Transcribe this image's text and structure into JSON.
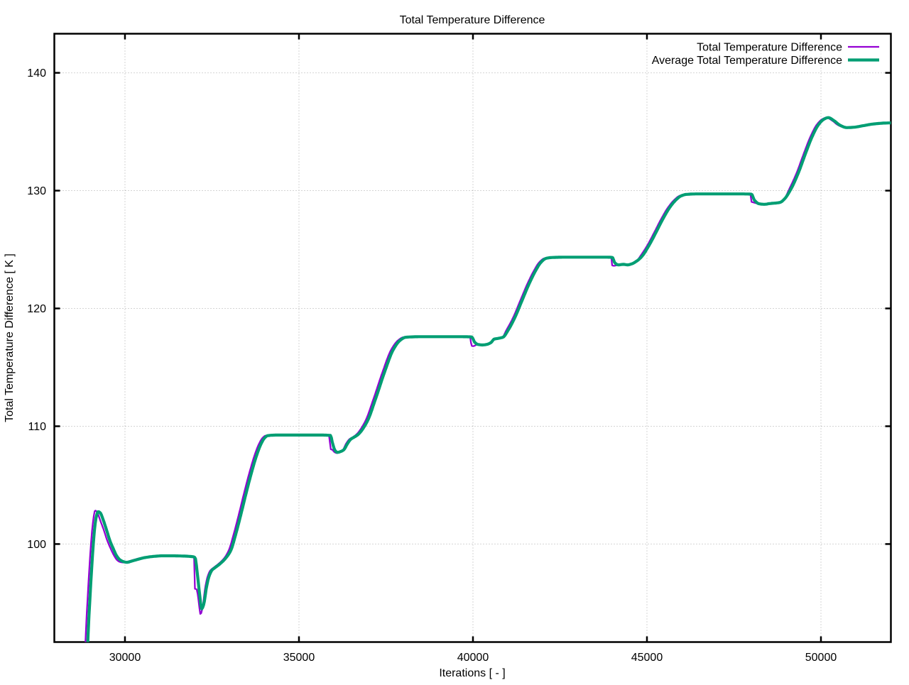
{
  "chart_data": {
    "type": "line",
    "title": "Total Temperature Difference",
    "xlabel": "Iterations [ - ]",
    "ylabel": "Total Temperature Difference [ K ]",
    "xlim": [
      27970,
      52010
    ],
    "ylim": [
      91.68,
      143.32
    ],
    "xticks": [
      30000,
      35000,
      40000,
      45000,
      50000
    ],
    "yticks": [
      100,
      110,
      120,
      130,
      140
    ],
    "grid": true,
    "legend_position": "top-right",
    "series": [
      {
        "name": "Total Temperature Difference",
        "color": "#9400D3",
        "width": 2.3,
        "points": [
          [
            28848,
            90.5
          ],
          [
            28880,
            92.8
          ],
          [
            28930,
            95.6
          ],
          [
            28990,
            98.6
          ],
          [
            29050,
            101.0
          ],
          [
            29100,
            102.3
          ],
          [
            29140,
            102.85
          ],
          [
            29200,
            102.7
          ],
          [
            29290,
            102.0
          ],
          [
            29390,
            101.2
          ],
          [
            29490,
            100.3
          ],
          [
            29590,
            99.6
          ],
          [
            29690,
            99.0
          ],
          [
            29780,
            98.62
          ],
          [
            29870,
            98.47
          ],
          [
            29970,
            98.43
          ],
          [
            30100,
            98.53
          ],
          [
            30300,
            98.7
          ],
          [
            30500,
            98.85
          ],
          [
            30750,
            98.95
          ],
          [
            31000,
            99.0
          ],
          [
            31300,
            99.0
          ],
          [
            31600,
            98.98
          ],
          [
            31900,
            98.92
          ],
          [
            31985,
            98.9
          ],
          [
            31992,
            96.25
          ],
          [
            32060,
            96.15
          ],
          [
            32110,
            95.3
          ],
          [
            32170,
            94.05
          ],
          [
            32230,
            94.6
          ],
          [
            32300,
            96.2
          ],
          [
            32370,
            97.2
          ],
          [
            32450,
            97.75
          ],
          [
            32550,
            98.0
          ],
          [
            32700,
            98.35
          ],
          [
            32850,
            98.8
          ],
          [
            32980,
            99.45
          ],
          [
            33120,
            100.8
          ],
          [
            33270,
            102.5
          ],
          [
            33420,
            104.3
          ],
          [
            33570,
            106.0
          ],
          [
            33720,
            107.5
          ],
          [
            33850,
            108.5
          ],
          [
            33950,
            109.0
          ],
          [
            34040,
            109.2
          ],
          [
            34300,
            109.25
          ],
          [
            35000,
            109.25
          ],
          [
            35600,
            109.25
          ],
          [
            35885,
            109.22
          ],
          [
            35892,
            108.1
          ],
          [
            35960,
            108.0
          ],
          [
            36020,
            107.8
          ],
          [
            36090,
            107.72
          ],
          [
            36180,
            107.85
          ],
          [
            36260,
            107.98
          ],
          [
            36350,
            108.5
          ],
          [
            36450,
            108.9
          ],
          [
            36550,
            109.08
          ],
          [
            36650,
            109.3
          ],
          [
            36900,
            110.4
          ],
          [
            37150,
            112.4
          ],
          [
            37400,
            114.6
          ],
          [
            37650,
            116.5
          ],
          [
            37850,
            117.3
          ],
          [
            38000,
            117.55
          ],
          [
            38400,
            117.6
          ],
          [
            39000,
            117.6
          ],
          [
            39600,
            117.6
          ],
          [
            39940,
            117.58
          ],
          [
            39947,
            116.85
          ],
          [
            40010,
            116.8
          ],
          [
            40135,
            116.95
          ],
          [
            40275,
            116.9
          ],
          [
            40425,
            116.97
          ],
          [
            40525,
            117.12
          ],
          [
            40605,
            117.39
          ],
          [
            40725,
            117.46
          ],
          [
            40850,
            117.56
          ],
          [
            40950,
            118.1
          ],
          [
            41150,
            119.2
          ],
          [
            41350,
            120.6
          ],
          [
            41550,
            122.0
          ],
          [
            41750,
            123.2
          ],
          [
            41900,
            123.9
          ],
          [
            42050,
            124.25
          ],
          [
            42200,
            124.32
          ],
          [
            42600,
            124.35
          ],
          [
            43200,
            124.35
          ],
          [
            43800,
            124.35
          ],
          [
            43978,
            124.33
          ],
          [
            43985,
            123.7
          ],
          [
            44050,
            123.62
          ],
          [
            44175,
            123.7
          ],
          [
            44325,
            123.74
          ],
          [
            44445,
            123.7
          ],
          [
            44575,
            123.8
          ],
          [
            44705,
            124.02
          ],
          [
            44800,
            124.4
          ],
          [
            45000,
            125.3
          ],
          [
            45200,
            126.4
          ],
          [
            45400,
            127.55
          ],
          [
            45600,
            128.55
          ],
          [
            45780,
            129.2
          ],
          [
            45930,
            129.55
          ],
          [
            46080,
            129.68
          ],
          [
            46400,
            129.72
          ],
          [
            47000,
            129.72
          ],
          [
            47600,
            129.72
          ],
          [
            47978,
            129.7
          ],
          [
            47985,
            129.1
          ],
          [
            48060,
            129.0
          ],
          [
            48225,
            128.88
          ],
          [
            48375,
            128.84
          ],
          [
            48525,
            128.9
          ],
          [
            48675,
            128.94
          ],
          [
            48825,
            129.0
          ],
          [
            48935,
            129.25
          ],
          [
            49100,
            130.2
          ],
          [
            49300,
            131.5
          ],
          [
            49500,
            133.1
          ],
          [
            49700,
            134.6
          ],
          [
            49880,
            135.6
          ],
          [
            50030,
            136.05
          ],
          [
            50160,
            136.2
          ],
          [
            50320,
            135.95
          ],
          [
            50500,
            135.55
          ],
          [
            50700,
            135.35
          ],
          [
            50900,
            135.38
          ],
          [
            51150,
            135.5
          ],
          [
            51450,
            135.65
          ],
          [
            51750,
            135.73
          ],
          [
            52010,
            135.75
          ]
        ]
      },
      {
        "name": "Average Total Temperature Difference",
        "color": "#009E73",
        "width": 4.2,
        "points": [
          [
            28915,
            90.5
          ],
          [
            28947,
            92.8
          ],
          [
            28997,
            95.6
          ],
          [
            29057,
            98.6
          ],
          [
            29117,
            101.0
          ],
          [
            29167,
            102.2
          ],
          [
            29230,
            102.75
          ],
          [
            29290,
            102.65
          ],
          [
            29380,
            102.0
          ],
          [
            29470,
            101.2
          ],
          [
            29565,
            100.3
          ],
          [
            29665,
            99.6
          ],
          [
            29760,
            99.0
          ],
          [
            29860,
            98.65
          ],
          [
            29960,
            98.5
          ],
          [
            30060,
            98.45
          ],
          [
            30190,
            98.55
          ],
          [
            30370,
            98.7
          ],
          [
            30570,
            98.85
          ],
          [
            30820,
            98.95
          ],
          [
            31070,
            99.0
          ],
          [
            31370,
            99.0
          ],
          [
            31670,
            98.98
          ],
          [
            31960,
            98.92
          ],
          [
            32015,
            98.85
          ],
          [
            32075,
            97.6
          ],
          [
            32135,
            96.0
          ],
          [
            32205,
            94.5
          ],
          [
            32265,
            94.9
          ],
          [
            32340,
            96.3
          ],
          [
            32415,
            97.25
          ],
          [
            32500,
            97.78
          ],
          [
            32600,
            98.02
          ],
          [
            32750,
            98.37
          ],
          [
            32900,
            98.82
          ],
          [
            33040,
            99.45
          ],
          [
            33180,
            100.8
          ],
          [
            33330,
            102.5
          ],
          [
            33480,
            104.3
          ],
          [
            33630,
            106.0
          ],
          [
            33780,
            107.5
          ],
          [
            33910,
            108.5
          ],
          [
            34010,
            109.0
          ],
          [
            34100,
            109.2
          ],
          [
            34360,
            109.25
          ],
          [
            35000,
            109.25
          ],
          [
            35600,
            109.25
          ],
          [
            35905,
            109.22
          ],
          [
            35970,
            108.5
          ],
          [
            36035,
            107.95
          ],
          [
            36105,
            107.78
          ],
          [
            36205,
            107.86
          ],
          [
            36285,
            107.99
          ],
          [
            36390,
            108.5
          ],
          [
            36490,
            108.9
          ],
          [
            36590,
            109.08
          ],
          [
            36700,
            109.3
          ],
          [
            36960,
            110.4
          ],
          [
            37210,
            112.4
          ],
          [
            37460,
            114.6
          ],
          [
            37710,
            116.5
          ],
          [
            37910,
            117.3
          ],
          [
            38060,
            117.55
          ],
          [
            38460,
            117.6
          ],
          [
            39060,
            117.6
          ],
          [
            39660,
            117.6
          ],
          [
            39965,
            117.58
          ],
          [
            40045,
            117.15
          ],
          [
            40135,
            116.95
          ],
          [
            40275,
            116.9
          ],
          [
            40425,
            116.97
          ],
          [
            40525,
            117.12
          ],
          [
            40605,
            117.39
          ],
          [
            40725,
            117.46
          ],
          [
            40865,
            117.56
          ],
          [
            41000,
            118.1
          ],
          [
            41200,
            119.2
          ],
          [
            41400,
            120.6
          ],
          [
            41600,
            122.0
          ],
          [
            41800,
            123.2
          ],
          [
            41950,
            123.9
          ],
          [
            42100,
            124.25
          ],
          [
            42250,
            124.32
          ],
          [
            42650,
            124.35
          ],
          [
            43250,
            124.35
          ],
          [
            43820,
            124.35
          ],
          [
            44005,
            124.33
          ],
          [
            44075,
            123.88
          ],
          [
            44175,
            123.7
          ],
          [
            44325,
            123.74
          ],
          [
            44445,
            123.7
          ],
          [
            44575,
            123.8
          ],
          [
            44705,
            124.02
          ],
          [
            44850,
            124.4
          ],
          [
            45050,
            125.3
          ],
          [
            45250,
            126.4
          ],
          [
            45450,
            127.55
          ],
          [
            45650,
            128.55
          ],
          [
            45830,
            129.2
          ],
          [
            45980,
            129.55
          ],
          [
            46130,
            129.68
          ],
          [
            46450,
            129.72
          ],
          [
            47050,
            129.72
          ],
          [
            47650,
            129.72
          ],
          [
            48005,
            129.7
          ],
          [
            48085,
            129.2
          ],
          [
            48225,
            128.88
          ],
          [
            48375,
            128.84
          ],
          [
            48525,
            128.9
          ],
          [
            48675,
            128.94
          ],
          [
            48825,
            129.0
          ],
          [
            48945,
            129.27
          ],
          [
            49150,
            130.2
          ],
          [
            49350,
            131.5
          ],
          [
            49550,
            133.1
          ],
          [
            49750,
            134.6
          ],
          [
            49930,
            135.6
          ],
          [
            50080,
            136.05
          ],
          [
            50210,
            136.2
          ],
          [
            50370,
            135.95
          ],
          [
            50550,
            135.55
          ],
          [
            50740,
            135.35
          ],
          [
            50940,
            135.38
          ],
          [
            51190,
            135.5
          ],
          [
            51490,
            135.65
          ],
          [
            51790,
            135.73
          ],
          [
            52010,
            135.75
          ]
        ]
      }
    ]
  }
}
